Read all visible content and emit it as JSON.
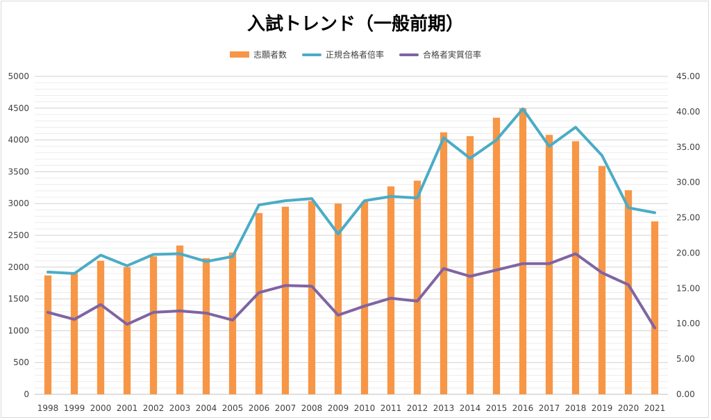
{
  "chart_data": {
    "type": "bar",
    "title": "入試トレンド（一般前期）",
    "categories": [
      "1998",
      "1999",
      "2000",
      "2001",
      "2002",
      "2003",
      "2004",
      "2005",
      "2006",
      "2007",
      "2008",
      "2009",
      "2010",
      "2011",
      "2012",
      "2013",
      "2014",
      "2015",
      "2016",
      "2017",
      "2018",
      "2019",
      "2020",
      "2021"
    ],
    "series": [
      {
        "name": "志願者数",
        "type": "bar",
        "axis": "left",
        "color": "#f79646",
        "values": [
          1870,
          1900,
          2100,
          2000,
          2170,
          2340,
          2140,
          2230,
          2850,
          2950,
          3040,
          3000,
          3030,
          3270,
          3360,
          4120,
          4060,
          4350,
          4500,
          4080,
          3980,
          3590,
          3210,
          2720
        ]
      },
      {
        "name": "正規合格者倍率",
        "type": "line",
        "axis": "right",
        "color": "#4bacc6",
        "values": [
          17.3,
          17.1,
          19.7,
          18.2,
          19.8,
          19.9,
          18.8,
          19.5,
          26.8,
          27.4,
          27.7,
          22.7,
          27.4,
          28.0,
          27.8,
          36.3,
          33.4,
          36.0,
          40.4,
          35.1,
          37.8,
          33.8,
          26.4,
          25.7
        ]
      },
      {
        "name": "合格者実質倍率",
        "type": "line",
        "axis": "right",
        "color": "#8064a2",
        "values": [
          11.6,
          10.6,
          12.7,
          9.9,
          11.6,
          11.8,
          11.5,
          10.5,
          14.4,
          15.4,
          15.3,
          11.2,
          12.5,
          13.6,
          13.2,
          17.8,
          16.7,
          17.6,
          18.5,
          18.5,
          19.9,
          17.2,
          15.5,
          9.4
        ]
      }
    ],
    "y_left": {
      "min": 0,
      "max": 5000,
      "ticks": [
        "0",
        "500",
        "1000",
        "1500",
        "2000",
        "2500",
        "3000",
        "3500",
        "4000",
        "4500",
        "5000"
      ]
    },
    "y_right": {
      "min": 0,
      "max": 45,
      "ticks": [
        "0.00",
        "5.00",
        "10.00",
        "15.00",
        "20.00",
        "25.00",
        "30.00",
        "35.00",
        "40.00",
        "45.00"
      ]
    },
    "grid": true,
    "legend": "top-center"
  }
}
